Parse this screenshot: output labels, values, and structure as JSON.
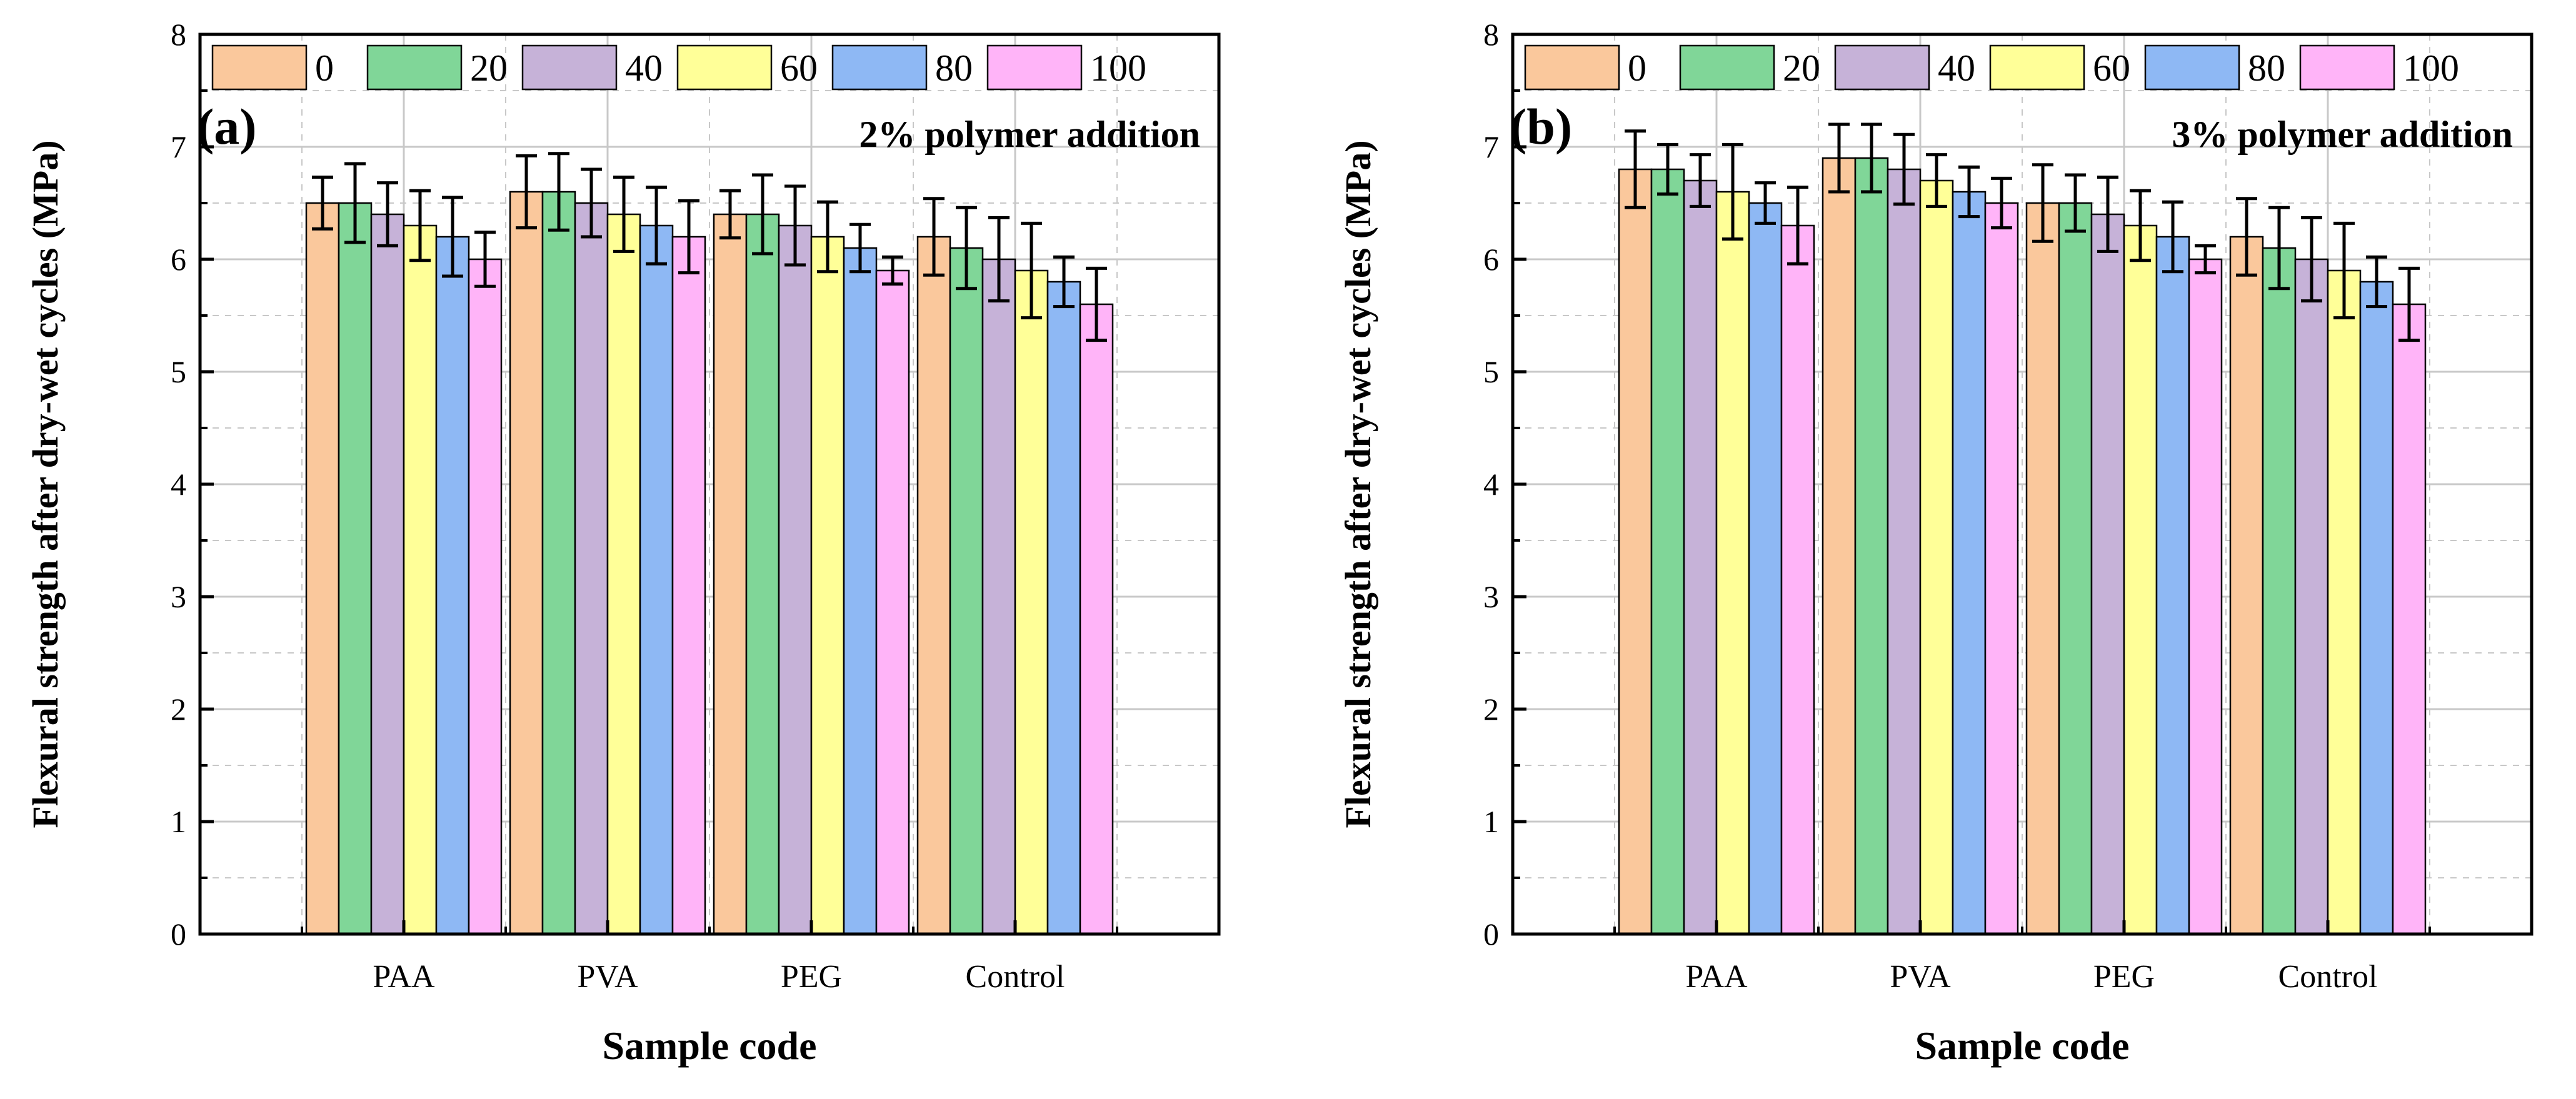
{
  "colors": {
    "series": [
      "#fac89c",
      "#80d698",
      "#c6b2d8",
      "#ffff98",
      "#8eb8f4",
      "#ffb4f8"
    ],
    "frame": "#000000",
    "grid": "#c8c8c8",
    "errorbar": "#000000"
  },
  "chart_data": [
    {
      "type": "bar",
      "panel_label": "(a)",
      "annotation": "2% polymer addition",
      "xlabel": "Sample code",
      "ylabel": "Flexural strength after dry-wet cycles (MPa)",
      "ylim": [
        0,
        8
      ],
      "yticks": [
        "0",
        "1",
        "2",
        "3",
        "4",
        "5",
        "6",
        "7",
        "8"
      ],
      "grid": true,
      "legend_position": "top",
      "categories": [
        "PAA",
        "PVA",
        "PEG",
        "Control"
      ],
      "series": [
        {
          "name": "0",
          "values": [
            6.5,
            6.6,
            6.4,
            6.2
          ],
          "errors": [
            0.23,
            0.32,
            0.21,
            0.34
          ]
        },
        {
          "name": "20",
          "values": [
            6.5,
            6.6,
            6.4,
            6.1
          ],
          "errors": [
            0.35,
            0.34,
            0.35,
            0.36
          ]
        },
        {
          "name": "40",
          "values": [
            6.4,
            6.5,
            6.3,
            6.0
          ],
          "errors": [
            0.28,
            0.3,
            0.35,
            0.37
          ]
        },
        {
          "name": "60",
          "values": [
            6.3,
            6.4,
            6.2,
            5.9
          ],
          "errors": [
            0.31,
            0.33,
            0.31,
            0.42
          ]
        },
        {
          "name": "80",
          "values": [
            6.2,
            6.3,
            6.1,
            5.8
          ],
          "errors": [
            0.35,
            0.34,
            0.21,
            0.22
          ]
        },
        {
          "name": "100",
          "values": [
            6.0,
            6.2,
            5.9,
            5.6
          ],
          "errors": [
            0.24,
            0.32,
            0.12,
            0.32
          ]
        }
      ]
    },
    {
      "type": "bar",
      "panel_label": "(b)",
      "annotation": "3% polymer addition",
      "xlabel": "Sample code",
      "ylabel": "Flexural strength after dry-wet cycles (MPa)",
      "ylim": [
        0,
        8
      ],
      "yticks": [
        "0",
        "1",
        "2",
        "3",
        "4",
        "5",
        "6",
        "7",
        "8"
      ],
      "grid": true,
      "legend_position": "top",
      "categories": [
        "PAA",
        "PVA",
        "PEG",
        "Control"
      ],
      "series": [
        {
          "name": "0",
          "values": [
            6.8,
            6.9,
            6.5,
            6.2
          ],
          "errors": [
            0.34,
            0.3,
            0.34,
            0.34
          ]
        },
        {
          "name": "20",
          "values": [
            6.8,
            6.9,
            6.5,
            6.1
          ],
          "errors": [
            0.22,
            0.3,
            0.25,
            0.36
          ]
        },
        {
          "name": "40",
          "values": [
            6.7,
            6.8,
            6.4,
            6.0
          ],
          "errors": [
            0.23,
            0.31,
            0.33,
            0.37
          ]
        },
        {
          "name": "60",
          "values": [
            6.6,
            6.7,
            6.3,
            5.9
          ],
          "errors": [
            0.42,
            0.23,
            0.31,
            0.42
          ]
        },
        {
          "name": "80",
          "values": [
            6.5,
            6.6,
            6.2,
            5.8
          ],
          "errors": [
            0.18,
            0.22,
            0.31,
            0.22
          ]
        },
        {
          "name": "100",
          "values": [
            6.3,
            6.5,
            6.0,
            5.6
          ],
          "errors": [
            0.34,
            0.22,
            0.12,
            0.32
          ]
        }
      ]
    }
  ]
}
